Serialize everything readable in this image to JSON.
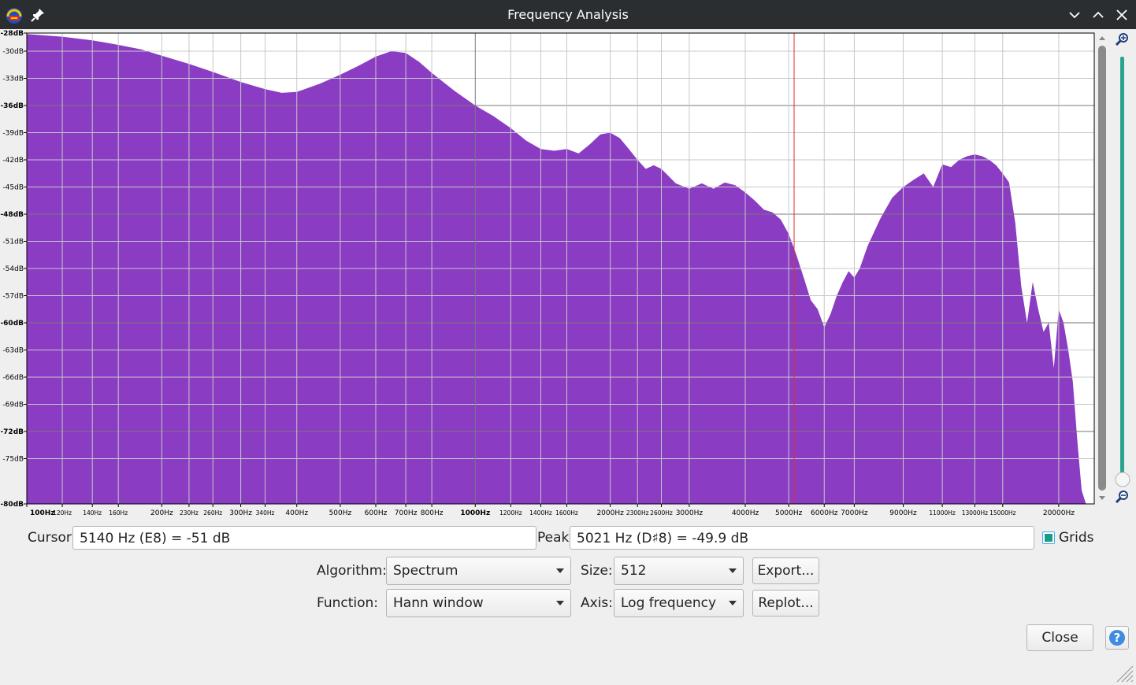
{
  "window": {
    "title": "Frequency Analysis"
  },
  "titlebar_icons": [
    "audacity-logo-icon",
    "pin-icon"
  ],
  "window_controls": [
    "minimize-chevron-icon",
    "maximize-chevron-icon",
    "close-x-icon"
  ],
  "colors": {
    "spectrum_fill": "#8a3cc3",
    "cursor_line": "#e03030",
    "slider_track": "#2aa38f",
    "titlebar": "#2b2e31",
    "help_icon": "#3d8be2"
  },
  "chart_data": {
    "type": "area",
    "xlabel": "",
    "ylabel": "",
    "x_scale": "log",
    "xlim": [
      100,
      24000
    ],
    "ylim": [
      -80,
      -28
    ],
    "grid": true,
    "x_ticks": [
      {
        "hz": 100,
        "label": "100Hz",
        "major": true
      },
      {
        "hz": 120,
        "label": "120Hz"
      },
      {
        "hz": 140,
        "label": "140Hz"
      },
      {
        "hz": 160,
        "label": "160Hz"
      },
      {
        "hz": 200,
        "label": "200Hz"
      },
      {
        "hz": 230,
        "label": "230Hz"
      },
      {
        "hz": 260,
        "label": "260Hz"
      },
      {
        "hz": 300,
        "label": "300Hz"
      },
      {
        "hz": 340,
        "label": "340Hz"
      },
      {
        "hz": 400,
        "label": "400Hz"
      },
      {
        "hz": 500,
        "label": "500Hz"
      },
      {
        "hz": 600,
        "label": "600Hz"
      },
      {
        "hz": 700,
        "label": "700Hz"
      },
      {
        "hz": 800,
        "label": "800Hz"
      },
      {
        "hz": 1000,
        "label": "1000Hz",
        "major": true
      },
      {
        "hz": 1200,
        "label": "1200Hz"
      },
      {
        "hz": 1400,
        "label": "1400Hz"
      },
      {
        "hz": 1600,
        "label": "1600Hz"
      },
      {
        "hz": 2000,
        "label": "2000Hz"
      },
      {
        "hz": 2300,
        "label": "2300Hz"
      },
      {
        "hz": 2600,
        "label": "2600Hz"
      },
      {
        "hz": 3000,
        "label": "3000Hz"
      },
      {
        "hz": 4000,
        "label": "4000Hz"
      },
      {
        "hz": 5000,
        "label": "5000Hz"
      },
      {
        "hz": 6000,
        "label": "6000Hz"
      },
      {
        "hz": 7000,
        "label": "7000Hz"
      },
      {
        "hz": 9000,
        "label": "9000Hz"
      },
      {
        "hz": 11000,
        "label": "11000Hz"
      },
      {
        "hz": 13000,
        "label": "13000Hz"
      },
      {
        "hz": 15000,
        "label": "15000Hz"
      },
      {
        "hz": 20000,
        "label": "20000Hz"
      }
    ],
    "y_ticks": [
      {
        "db": -28,
        "label": "-28dB",
        "major": true
      },
      {
        "db": -30,
        "label": "-30dB"
      },
      {
        "db": -33,
        "label": "-33dB"
      },
      {
        "db": -36,
        "label": "-36dB",
        "major": true
      },
      {
        "db": -39,
        "label": "-39dB"
      },
      {
        "db": -42,
        "label": "-42dB"
      },
      {
        "db": -45,
        "label": "-45dB"
      },
      {
        "db": -48,
        "label": "-48dB",
        "major": true
      },
      {
        "db": -51,
        "label": "-51dB"
      },
      {
        "db": -54,
        "label": "-54dB"
      },
      {
        "db": -57,
        "label": "-57dB"
      },
      {
        "db": -60,
        "label": "-60dB",
        "major": true
      },
      {
        "db": -63,
        "label": "-63dB"
      },
      {
        "db": -66,
        "label": "-66dB"
      },
      {
        "db": -69,
        "label": "-69dB"
      },
      {
        "db": -72,
        "label": "-72dB",
        "major": true
      },
      {
        "db": -75,
        "label": "-75dB"
      },
      {
        "db": -80,
        "label": "-80dB",
        "major": true
      }
    ],
    "cursor_hz": 5140,
    "series": [
      {
        "points": [
          [
            100,
            -28.1
          ],
          [
            120,
            -28.4
          ],
          [
            140,
            -28.8
          ],
          [
            160,
            -29.3
          ],
          [
            180,
            -29.8
          ],
          [
            200,
            -30.5
          ],
          [
            230,
            -31.4
          ],
          [
            260,
            -32.3
          ],
          [
            300,
            -33.4
          ],
          [
            340,
            -34.2
          ],
          [
            370,
            -34.6
          ],
          [
            400,
            -34.5
          ],
          [
            450,
            -33.6
          ],
          [
            500,
            -32.6
          ],
          [
            550,
            -31.6
          ],
          [
            600,
            -30.6
          ],
          [
            650,
            -30.0
          ],
          [
            700,
            -30.2
          ],
          [
            750,
            -31.2
          ],
          [
            800,
            -32.4
          ],
          [
            900,
            -34.4
          ],
          [
            1000,
            -36.0
          ],
          [
            1100,
            -37.2
          ],
          [
            1200,
            -38.5
          ],
          [
            1300,
            -39.9
          ],
          [
            1400,
            -40.8
          ],
          [
            1500,
            -41.0
          ],
          [
            1600,
            -40.8
          ],
          [
            1700,
            -41.3
          ],
          [
            1800,
            -40.3
          ],
          [
            1900,
            -39.2
          ],
          [
            2000,
            -39.0
          ],
          [
            2100,
            -39.6
          ],
          [
            2200,
            -40.8
          ],
          [
            2300,
            -42.0
          ],
          [
            2400,
            -43.0
          ],
          [
            2500,
            -42.6
          ],
          [
            2600,
            -43.0
          ],
          [
            2700,
            -43.8
          ],
          [
            2800,
            -44.6
          ],
          [
            3000,
            -45.2
          ],
          [
            3200,
            -44.6
          ],
          [
            3400,
            -45.2
          ],
          [
            3600,
            -44.5
          ],
          [
            3800,
            -44.8
          ],
          [
            4000,
            -45.6
          ],
          [
            4200,
            -46.5
          ],
          [
            4400,
            -47.5
          ],
          [
            4600,
            -47.8
          ],
          [
            4800,
            -48.6
          ],
          [
            5000,
            -50.2
          ],
          [
            5200,
            -52.5
          ],
          [
            5400,
            -55.0
          ],
          [
            5600,
            -57.5
          ],
          [
            5800,
            -58.5
          ],
          [
            6000,
            -60.5
          ],
          [
            6200,
            -59.0
          ],
          [
            6400,
            -57.0
          ],
          [
            6600,
            -55.5
          ],
          [
            6800,
            -54.3
          ],
          [
            7000,
            -55.0
          ],
          [
            7200,
            -54.0
          ],
          [
            7500,
            -51.5
          ],
          [
            8000,
            -48.5
          ],
          [
            8500,
            -46.2
          ],
          [
            9000,
            -45.0
          ],
          [
            9500,
            -44.2
          ],
          [
            10000,
            -43.5
          ],
          [
            10500,
            -45.0
          ],
          [
            11000,
            -42.5
          ],
          [
            11500,
            -42.8
          ],
          [
            12000,
            -42.0
          ],
          [
            12500,
            -41.6
          ],
          [
            13000,
            -41.4
          ],
          [
            13500,
            -41.6
          ],
          [
            14000,
            -42.0
          ],
          [
            14500,
            -42.6
          ],
          [
            15000,
            -43.5
          ],
          [
            15500,
            -44.5
          ],
          [
            16000,
            -49.0
          ],
          [
            16500,
            -56.0
          ],
          [
            17000,
            -60.0
          ],
          [
            17500,
            -55.5
          ],
          [
            18000,
            -58.5
          ],
          [
            18500,
            -61.0
          ],
          [
            19000,
            -60.0
          ],
          [
            19500,
            -65.0
          ],
          [
            20000,
            -58.5
          ],
          [
            20500,
            -60.0
          ],
          [
            21000,
            -63.0
          ],
          [
            21500,
            -66.5
          ],
          [
            22000,
            -73.0
          ],
          [
            22500,
            -78.5
          ],
          [
            23000,
            -80.0
          ],
          [
            24000,
            -80.0
          ]
        ]
      }
    ]
  },
  "cursor": {
    "label": "Cursor:",
    "value": "5140 Hz (E8) = -51 dB"
  },
  "peak": {
    "label": "Peak:",
    "value": "5021 Hz (D♯8) = -49.9 dB"
  },
  "grids": {
    "label": "Grids",
    "checked": true
  },
  "algorithm": {
    "label": "Algorithm:",
    "value": "Spectrum"
  },
  "size": {
    "label": "Size:",
    "value": "512"
  },
  "function": {
    "label": "Function:",
    "value": "Hann window"
  },
  "axis": {
    "label": "Axis:",
    "value": "Log frequency"
  },
  "buttons": {
    "export": "Export...",
    "replot": "Replot...",
    "close": "Close",
    "help": "?"
  }
}
